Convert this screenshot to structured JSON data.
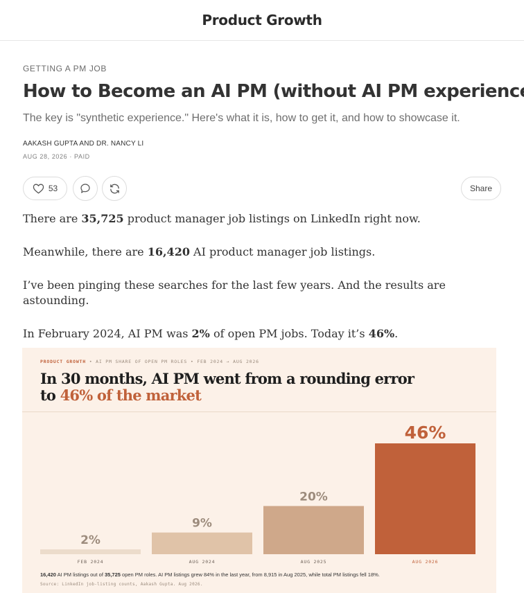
{
  "header": {
    "publication": "Product Growth"
  },
  "post": {
    "kicker": "GETTING A PM JOB",
    "title": "How to Become an AI PM (without AI PM experience)",
    "subtitle": "The key is \"synthetic experience.\" Here's what it is, how to get it, and how to showcase it.",
    "authors": "AAKASH GUPTA AND DR. NANCY LI",
    "meta": "AUG 28, 2026 · PAID"
  },
  "actions": {
    "like_count": "53",
    "share_label": "Share",
    "icons": [
      "heart-icon",
      "comment-icon",
      "restack-icon"
    ]
  },
  "body": {
    "p1": {
      "pre": "There are ",
      "bold": "35,725",
      "post": " product manager job listings on LinkedIn right now."
    },
    "p2": {
      "pre": "Meanwhile, there are ",
      "bold": "16,420",
      "post": " AI product manager job listings."
    },
    "p3": "I’ve been pinging these searches for the last few years. And the results are astounding.",
    "p4": {
      "pre": "In February 2024, AI PM was ",
      "bold1": "2%",
      "mid": " of open PM jobs. Today it’s ",
      "bold2": "46%",
      "post": "."
    }
  },
  "chart_data": {
    "type": "bar",
    "kicker_brand": "PRODUCT GROWTH",
    "kicker_rest": " • AI PM SHARE OF OPEN PM ROLES • FEB 2024 → AUG 2026",
    "title_line1": "In 30 months, AI PM went from a rounding error",
    "title_line2_pre": "to ",
    "title_line2_highlight": "46% of the market",
    "categories": [
      "FEB 2024",
      "AUG 2024",
      "AUG 2025",
      "AUG 2026"
    ],
    "values": [
      2,
      9,
      20,
      46
    ],
    "value_labels": [
      "2%",
      "9%",
      "20%",
      "46%"
    ],
    "ylim": [
      0,
      46
    ],
    "colors": [
      "#ecdccb",
      "#e0c3a8",
      "#cfa88a",
      "#c0613a"
    ],
    "label_colors": [
      "#9d8c7d",
      "#9d8c7d",
      "#9d8c7d",
      "#c0613a"
    ],
    "highlight_color": "#c0613a",
    "footnote": {
      "b1": "16,420",
      "t1": " AI PM listings out of ",
      "b2": "35,725",
      "t2": " open PM roles. AI PM listings grew 84% in the last year, from 8,915 in Aug 2025, while total PM listings fell 18%."
    },
    "source": "Source: LinkedIn job-listing counts, Aakash Gupta. Aug 2026."
  }
}
